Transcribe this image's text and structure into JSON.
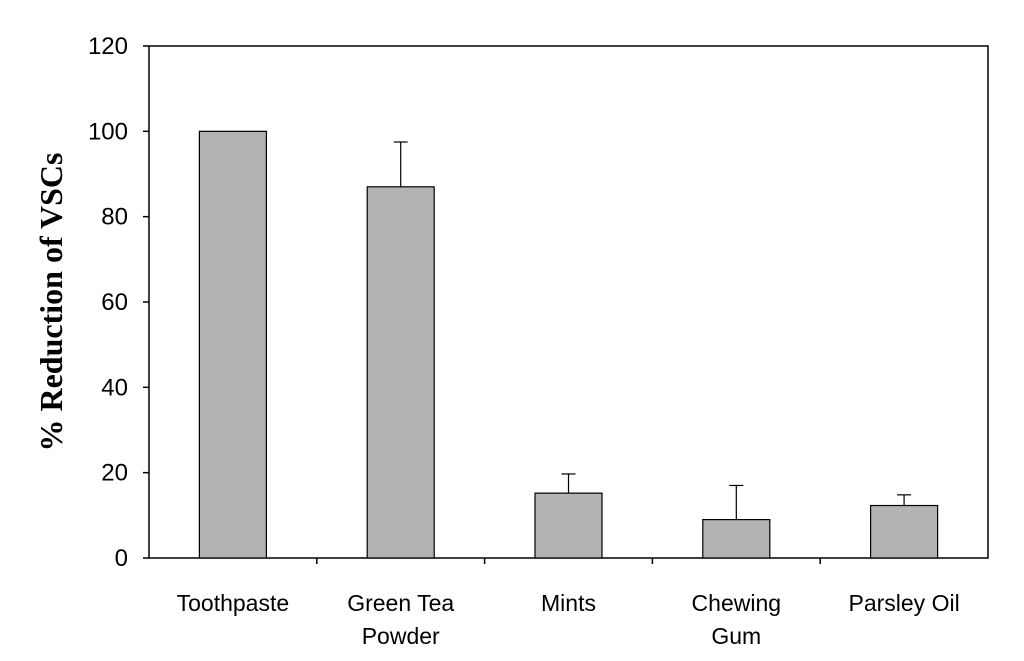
{
  "chart_data": {
    "type": "bar",
    "title": "",
    "xlabel": "",
    "ylabel": "% Reduction of VSCs",
    "ylim": [
      0,
      120
    ],
    "yticks": [
      0,
      20,
      40,
      60,
      80,
      100,
      120
    ],
    "categories": [
      [
        "Toothpaste"
      ],
      [
        "Green Tea",
        "Powder"
      ],
      [
        "Mints"
      ],
      [
        "Chewing",
        "Gum"
      ],
      [
        "Parsley Oil"
      ]
    ],
    "values": [
      100,
      87,
      15.2,
      9,
      12.3
    ],
    "error_upper": [
      0,
      10.5,
      4.5,
      8,
      2.5
    ],
    "grid": false,
    "bar_color": "#b3b3b3"
  }
}
